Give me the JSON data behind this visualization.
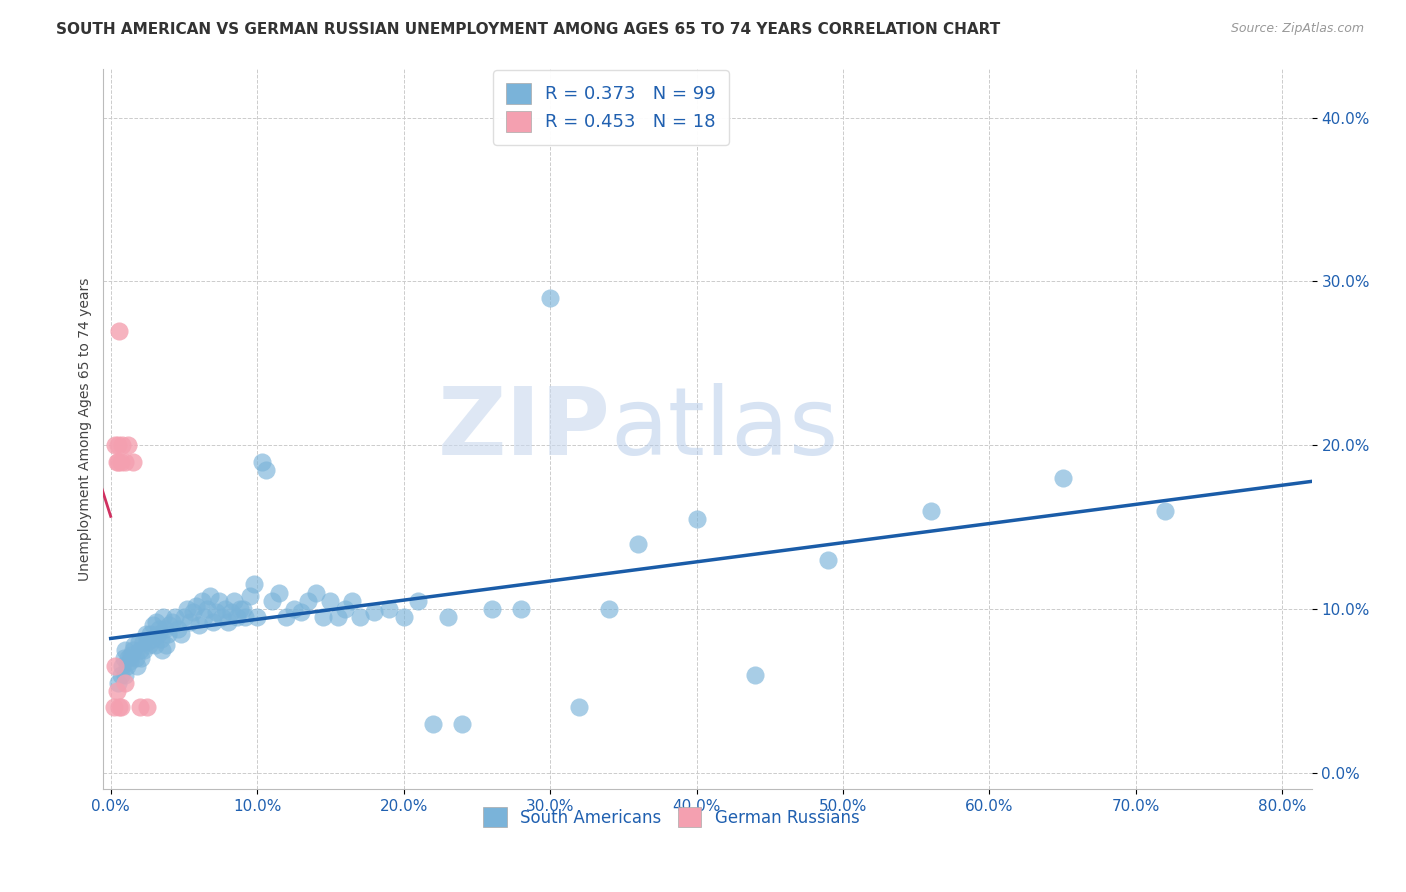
{
  "title": "SOUTH AMERICAN VS GERMAN RUSSIAN UNEMPLOYMENT AMONG AGES 65 TO 74 YEARS CORRELATION CHART",
  "source": "Source: ZipAtlas.com",
  "ylabel": "Unemployment Among Ages 65 to 74 years",
  "xlim": [
    -0.005,
    0.82
  ],
  "ylim": [
    -0.01,
    0.43
  ],
  "xticks": [
    0.0,
    0.1,
    0.2,
    0.3,
    0.4,
    0.5,
    0.6,
    0.7,
    0.8
  ],
  "yticks": [
    0.0,
    0.1,
    0.2,
    0.3,
    0.4
  ],
  "xtick_labels": [
    "0.0%",
    "10.0%",
    "20.0%",
    "30.0%",
    "40.0%",
    "50.0%",
    "60.0%",
    "70.0%",
    "80.0%"
  ],
  "ytick_labels": [
    "0.0%",
    "10.0%",
    "20.0%",
    "30.0%",
    "40.0%"
  ],
  "legend_labels": [
    "South Americans",
    "German Russians"
  ],
  "R_blue": 0.373,
  "N_blue": 99,
  "R_pink": 0.453,
  "N_pink": 18,
  "blue_color": "#7ab3d9",
  "pink_color": "#f4a0b0",
  "blue_line_color": "#1a5ca8",
  "pink_line_color": "#d03060",
  "title_fontsize": 11,
  "axis_label_fontsize": 10,
  "tick_fontsize": 11,
  "watermark_zip": "ZIP",
  "watermark_atlas": "atlas",
  "blue_scatter_x": [
    0.005,
    0.007,
    0.008,
    0.009,
    0.01,
    0.01,
    0.011,
    0.012,
    0.013,
    0.014,
    0.015,
    0.016,
    0.017,
    0.018,
    0.019,
    0.02,
    0.021,
    0.022,
    0.023,
    0.024,
    0.025,
    0.026,
    0.027,
    0.028,
    0.029,
    0.03,
    0.031,
    0.032,
    0.033,
    0.034,
    0.035,
    0.036,
    0.037,
    0.038,
    0.039,
    0.04,
    0.042,
    0.044,
    0.046,
    0.048,
    0.05,
    0.052,
    0.054,
    0.056,
    0.058,
    0.06,
    0.062,
    0.064,
    0.066,
    0.068,
    0.07,
    0.072,
    0.074,
    0.076,
    0.078,
    0.08,
    0.082,
    0.084,
    0.086,
    0.088,
    0.09,
    0.092,
    0.095,
    0.098,
    0.1,
    0.103,
    0.106,
    0.11,
    0.115,
    0.12,
    0.125,
    0.13,
    0.135,
    0.14,
    0.145,
    0.15,
    0.155,
    0.16,
    0.165,
    0.17,
    0.18,
    0.19,
    0.2,
    0.21,
    0.22,
    0.23,
    0.24,
    0.26,
    0.28,
    0.3,
    0.32,
    0.34,
    0.36,
    0.4,
    0.44,
    0.49,
    0.56,
    0.65,
    0.72
  ],
  "blue_scatter_y": [
    0.055,
    0.06,
    0.065,
    0.07,
    0.06,
    0.075,
    0.065,
    0.07,
    0.068,
    0.072,
    0.075,
    0.078,
    0.07,
    0.065,
    0.08,
    0.075,
    0.07,
    0.08,
    0.075,
    0.085,
    0.08,
    0.078,
    0.085,
    0.082,
    0.09,
    0.078,
    0.092,
    0.085,
    0.088,
    0.082,
    0.075,
    0.095,
    0.088,
    0.078,
    0.085,
    0.09,
    0.092,
    0.095,
    0.088,
    0.085,
    0.095,
    0.1,
    0.092,
    0.098,
    0.102,
    0.09,
    0.105,
    0.095,
    0.1,
    0.108,
    0.092,
    0.098,
    0.105,
    0.095,
    0.1,
    0.092,
    0.098,
    0.105,
    0.095,
    0.1,
    0.1,
    0.095,
    0.108,
    0.115,
    0.095,
    0.19,
    0.185,
    0.105,
    0.11,
    0.095,
    0.1,
    0.098,
    0.105,
    0.11,
    0.095,
    0.105,
    0.095,
    0.1,
    0.105,
    0.095,
    0.098,
    0.1,
    0.095,
    0.105,
    0.03,
    0.095,
    0.03,
    0.1,
    0.1,
    0.29,
    0.04,
    0.1,
    0.14,
    0.155,
    0.06,
    0.13,
    0.16,
    0.18,
    0.16
  ],
  "pink_scatter_x": [
    0.002,
    0.003,
    0.003,
    0.004,
    0.004,
    0.005,
    0.005,
    0.006,
    0.006,
    0.007,
    0.007,
    0.008,
    0.01,
    0.01,
    0.012,
    0.015,
    0.02,
    0.025
  ],
  "pink_scatter_y": [
    0.04,
    0.065,
    0.2,
    0.05,
    0.19,
    0.19,
    0.2,
    0.04,
    0.27,
    0.04,
    0.19,
    0.2,
    0.055,
    0.19,
    0.2,
    0.19,
    0.04,
    0.04
  ]
}
